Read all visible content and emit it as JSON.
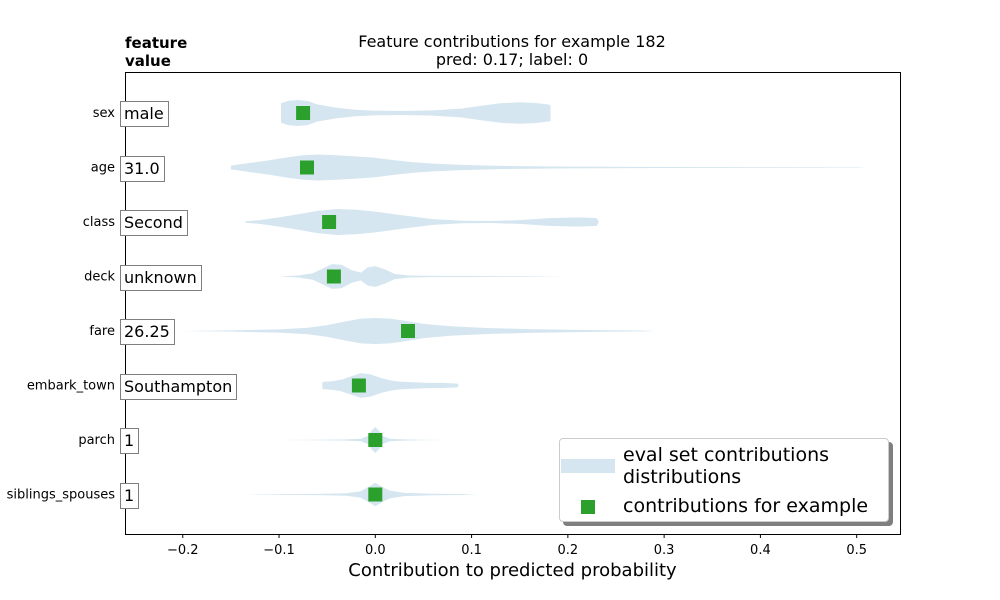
{
  "title_line1": "Feature contributions for example 182",
  "title_line2": "pred: 0.17; label: 0",
  "header": "feature\nvalue",
  "colors": {
    "violin": "#d5e6f0",
    "marker": "#2ca02c",
    "box_border": "#7f7f7f"
  },
  "chart_data": {
    "type": "violin",
    "title": "Feature contributions for example 182\npred: 0.17; label: 0",
    "xlabel": "Contribution to predicted probability",
    "ylabel": "",
    "xlim": [
      -0.26,
      0.545
    ],
    "x_ticks": [
      -0.2,
      -0.1,
      0.0,
      0.1,
      0.2,
      0.3,
      0.4,
      0.5
    ],
    "x_tick_labels": [
      "−0.2",
      "−0.1",
      "0.0",
      "0.1",
      "0.2",
      "0.3",
      "0.4",
      "0.5"
    ],
    "features": [
      {
        "name": "sex",
        "value": "male",
        "contribution": -0.075,
        "violin": [
          [
            -0.098,
            0.75
          ],
          [
            -0.09,
            0.95
          ],
          [
            -0.08,
            1.0
          ],
          [
            -0.07,
            0.92
          ],
          [
            -0.06,
            0.65
          ],
          [
            -0.04,
            0.4
          ],
          [
            -0.02,
            0.25
          ],
          [
            0.0,
            0.18
          ],
          [
            0.03,
            0.15
          ],
          [
            0.06,
            0.2
          ],
          [
            0.09,
            0.35
          ],
          [
            0.11,
            0.55
          ],
          [
            0.13,
            0.75
          ],
          [
            0.15,
            0.82
          ],
          [
            0.165,
            0.78
          ],
          [
            0.18,
            0.65
          ],
          [
            0.182,
            0.6
          ]
        ]
      },
      {
        "name": "age",
        "value": "31.0",
        "contribution": -0.071,
        "violin": [
          [
            -0.15,
            0.15
          ],
          [
            -0.13,
            0.35
          ],
          [
            -0.11,
            0.55
          ],
          [
            -0.09,
            0.8
          ],
          [
            -0.075,
            0.95
          ],
          [
            -0.06,
            1.0
          ],
          [
            -0.04,
            0.95
          ],
          [
            -0.02,
            0.85
          ],
          [
            0.0,
            0.75
          ],
          [
            0.02,
            0.55
          ],
          [
            0.04,
            0.4
          ],
          [
            0.06,
            0.3
          ],
          [
            0.09,
            0.2
          ],
          [
            0.13,
            0.12
          ],
          [
            0.2,
            0.07
          ],
          [
            0.3,
            0.04
          ],
          [
            0.4,
            0.03
          ],
          [
            0.5,
            0.02
          ],
          [
            0.51,
            0.0
          ]
        ]
      },
      {
        "name": "class",
        "value": "Second",
        "contribution": -0.048,
        "violin": [
          [
            -0.135,
            0.05
          ],
          [
            -0.12,
            0.15
          ],
          [
            -0.1,
            0.35
          ],
          [
            -0.08,
            0.6
          ],
          [
            -0.06,
            0.85
          ],
          [
            -0.04,
            1.0
          ],
          [
            -0.02,
            0.95
          ],
          [
            0.0,
            0.8
          ],
          [
            0.02,
            0.6
          ],
          [
            0.04,
            0.4
          ],
          [
            0.06,
            0.22
          ],
          [
            0.09,
            0.1
          ],
          [
            0.12,
            0.08
          ],
          [
            0.15,
            0.15
          ],
          [
            0.18,
            0.3
          ],
          [
            0.21,
            0.35
          ],
          [
            0.23,
            0.3
          ],
          [
            0.232,
            0.0
          ]
        ]
      },
      {
        "name": "deck",
        "value": "unknown",
        "contribution": -0.043,
        "violin": [
          [
            -0.1,
            0.0
          ],
          [
            -0.08,
            0.08
          ],
          [
            -0.065,
            0.25
          ],
          [
            -0.055,
            0.6
          ],
          [
            -0.045,
            0.95
          ],
          [
            -0.035,
            0.9
          ],
          [
            -0.025,
            0.5
          ],
          [
            -0.015,
            0.3
          ],
          [
            -0.008,
            0.7
          ],
          [
            0.0,
            0.8
          ],
          [
            0.01,
            0.55
          ],
          [
            0.02,
            0.2
          ],
          [
            0.035,
            0.08
          ],
          [
            0.06,
            0.05
          ],
          [
            0.1,
            0.04
          ],
          [
            0.15,
            0.03
          ],
          [
            0.2,
            0.0
          ]
        ]
      },
      {
        "name": "fare",
        "value": "26.25",
        "contribution": 0.034,
        "violin": [
          [
            -0.2,
            0.0
          ],
          [
            -0.15,
            0.05
          ],
          [
            -0.1,
            0.12
          ],
          [
            -0.07,
            0.25
          ],
          [
            -0.05,
            0.45
          ],
          [
            -0.03,
            0.75
          ],
          [
            -0.015,
            0.95
          ],
          [
            0.0,
            1.0
          ],
          [
            0.015,
            0.95
          ],
          [
            0.03,
            0.8
          ],
          [
            0.05,
            0.55
          ],
          [
            0.08,
            0.35
          ],
          [
            0.12,
            0.22
          ],
          [
            0.16,
            0.15
          ],
          [
            0.2,
            0.1
          ],
          [
            0.24,
            0.06
          ],
          [
            0.28,
            0.03
          ],
          [
            0.29,
            0.0
          ]
        ]
      },
      {
        "name": "embark_town",
        "value": "Southampton",
        "contribution": -0.017,
        "violin": [
          [
            -0.055,
            0.28
          ],
          [
            -0.045,
            0.32
          ],
          [
            -0.035,
            0.45
          ],
          [
            -0.025,
            0.7
          ],
          [
            -0.015,
            0.95
          ],
          [
            -0.005,
            0.85
          ],
          [
            0.005,
            0.6
          ],
          [
            0.015,
            0.4
          ],
          [
            0.025,
            0.3
          ],
          [
            0.04,
            0.25
          ],
          [
            0.055,
            0.2
          ],
          [
            0.07,
            0.2
          ],
          [
            0.085,
            0.15
          ],
          [
            0.087,
            0.0
          ]
        ]
      },
      {
        "name": "parch",
        "value": "1",
        "contribution": 0.0,
        "violin": [
          [
            -0.1,
            0.0
          ],
          [
            -0.06,
            0.02
          ],
          [
            -0.03,
            0.05
          ],
          [
            -0.015,
            0.1
          ],
          [
            -0.008,
            0.3
          ],
          [
            -0.004,
            0.7
          ],
          [
            0.0,
            1.0
          ],
          [
            0.004,
            0.7
          ],
          [
            0.008,
            0.3
          ],
          [
            0.015,
            0.1
          ],
          [
            0.03,
            0.05
          ],
          [
            0.05,
            0.02
          ],
          [
            0.07,
            0.0
          ]
        ]
      },
      {
        "name": "siblings_spouses",
        "value": "1",
        "contribution": 0.0,
        "violin": [
          [
            -0.135,
            0.0
          ],
          [
            -0.1,
            0.03
          ],
          [
            -0.06,
            0.05
          ],
          [
            -0.03,
            0.1
          ],
          [
            -0.015,
            0.25
          ],
          [
            -0.008,
            0.55
          ],
          [
            0.0,
            0.9
          ],
          [
            0.008,
            0.55
          ],
          [
            0.015,
            0.3
          ],
          [
            0.03,
            0.12
          ],
          [
            0.06,
            0.06
          ],
          [
            0.09,
            0.04
          ],
          [
            0.105,
            0.0
          ]
        ]
      }
    ],
    "legend": {
      "position": "lower-right",
      "entries": [
        "eval set contributions\ndistributions",
        "contributions for example"
      ]
    }
  }
}
